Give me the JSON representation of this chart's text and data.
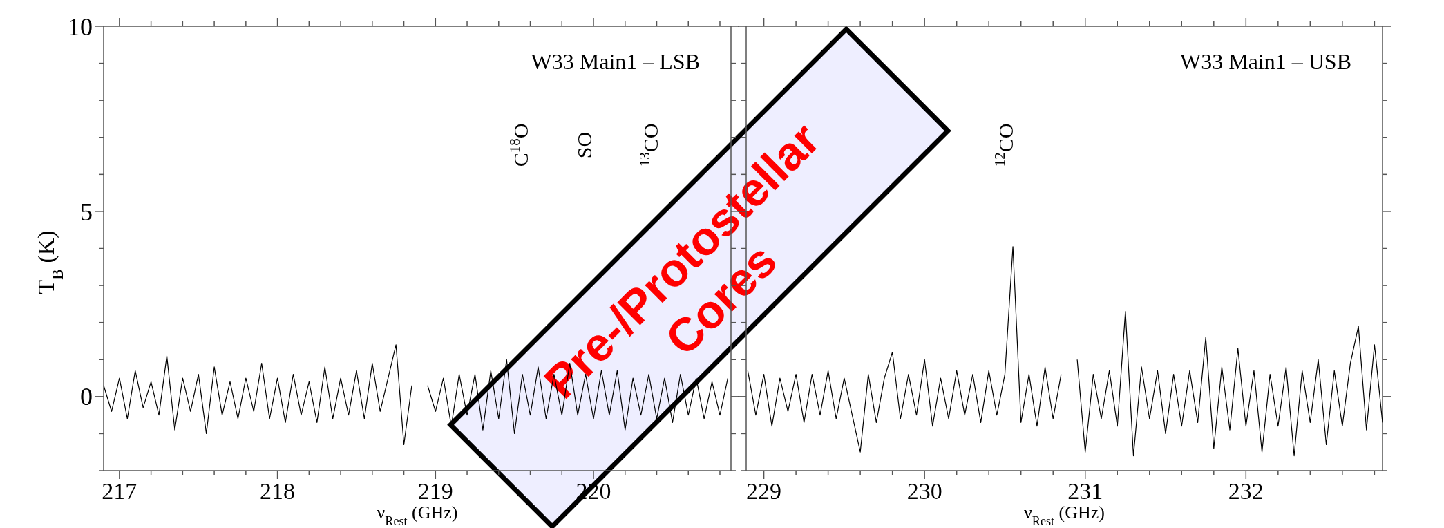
{
  "chart_data": [
    {
      "type": "line",
      "xlabel": "ν$_{Rest}$ (GHz)",
      "ylabel": "T$_{B}$ (K)",
      "xlim": [
        216.9,
        220.87
      ],
      "ylim": [
        -2,
        10
      ],
      "xticks": [
        217,
        {
          "value": 217.2,
          "label": null
        },
        {
          "value": 217.4,
          "label": null
        },
        {
          "value": 217.6,
          "label": null
        },
        {
          "value": 217.8,
          "label": null
        },
        218,
        {
          "value": 218.2,
          "label": null
        },
        {
          "value": 218.4,
          "label": null
        },
        {
          "value": 218.6,
          "label": null
        },
        {
          "value": 218.8,
          "label": null
        },
        219,
        {
          "value": 219.2,
          "label": null
        },
        {
          "value": 219.4,
          "label": null
        },
        {
          "value": 219.6,
          "label": null
        },
        {
          "value": 219.8,
          "label": null
        },
        220,
        {
          "value": 220.2,
          "label": null
        },
        {
          "value": 220.4,
          "label": null
        },
        {
          "value": 220.6,
          "label": null
        },
        {
          "value": 220.8,
          "label": null
        }
      ],
      "yticks": [
        {
          "value": -2,
          "label": null
        },
        {
          "value": -1,
          "label": null
        },
        0,
        {
          "value": 1,
          "label": null
        },
        {
          "value": 2,
          "label": null
        },
        {
          "value": 3,
          "label": null
        },
        {
          "value": 4,
          "label": null
        },
        5,
        {
          "value": 6,
          "label": null
        },
        {
          "value": 7,
          "label": null
        },
        {
          "value": 8,
          "label": null
        },
        {
          "value": 9,
          "label": null
        },
        10
      ],
      "x": [
        216.9,
        216.95,
        217,
        217.05,
        217.1,
        217.15,
        217.2,
        217.25,
        217.3,
        217.35,
        217.4,
        217.45,
        217.5,
        217.55,
        217.6,
        217.65,
        217.7,
        217.75,
        217.8,
        217.85,
        217.9,
        217.95,
        218,
        218.05,
        218.1,
        218.15,
        218.2,
        218.25,
        218.3,
        218.35,
        218.4,
        218.45,
        218.5,
        218.55,
        218.6,
        218.65,
        218.7,
        218.75,
        218.8,
        218.85,
        218.9,
        218.95,
        219,
        219.05,
        219.1,
        219.15,
        219.2,
        219.25,
        219.3,
        219.35,
        219.4,
        219.45,
        219.5,
        219.55,
        219.6,
        219.65,
        219.7,
        219.75,
        219.8,
        219.85,
        219.9,
        219.95,
        220,
        220.05,
        220.1,
        220.15,
        220.2,
        220.25,
        220.3,
        220.35,
        220.4,
        220.45,
        220.5,
        220.55,
        220.6,
        220.65,
        220.7,
        220.75,
        220.8,
        220.85
      ],
      "series": [
        {
          "color": "#000000",
          "values": [
            0.3,
            -0.4,
            0.5,
            -0.6,
            0.7,
            -0.3,
            0.4,
            -0.5,
            1.1,
            -0.9,
            0.5,
            -0.4,
            0.6,
            -1.0,
            0.8,
            -0.5,
            0.4,
            -0.6,
            0.5,
            -0.4,
            0.9,
            -0.6,
            0.5,
            -0.7,
            0.6,
            -0.5,
            0.4,
            -0.7,
            0.8,
            -0.6,
            0.5,
            -0.5,
            0.7,
            -0.6,
            0.9,
            -0.4,
            0.5,
            1.4,
            -1.3,
            0.3,
            null,
            0.3,
            -0.4,
            0.5,
            -0.8,
            0.6,
            -0.5,
            0.6,
            -0.9,
            0.7,
            -0.6,
            1.0,
            -1.0,
            0.6,
            -0.5,
            0.8,
            -0.6,
            0.6,
            -0.5,
            0.9,
            -0.5,
            0.6,
            -0.6,
            0.7,
            -0.5,
            0.7,
            -0.9,
            0.5,
            -0.5,
            0.6,
            -0.6,
            0.5,
            -0.7,
            0.6,
            -0.5,
            0.5,
            -0.6,
            0.4,
            -0.5,
            0.5
          ]
        }
      ],
      "annotations": [
        "W33 Main1 – LSB",
        "C$^{18}$O",
        "SO",
        "$^{13}$CO",
        "Pre-/Protostellar Cores"
      ]
    },
    {
      "type": "line",
      "xlabel": "ν$_{Rest}$ (GHz)",
      "tick_labels": "x",
      "xlim": [
        228.89,
        232.85
      ],
      "ylim": [
        -2,
        10
      ],
      "xticks": [
        229,
        {
          "value": 229.2,
          "label": null
        },
        {
          "value": 229.4,
          "label": null
        },
        {
          "value": 229.6,
          "label": null
        },
        {
          "value": 229.8,
          "label": null
        },
        230,
        {
          "value": 230.2,
          "label": null
        },
        {
          "value": 230.4,
          "label": null
        },
        {
          "value": 230.6,
          "label": null
        },
        {
          "value": 230.8,
          "label": null
        },
        231,
        {
          "value": 231.2,
          "label": null
        },
        {
          "value": 231.4,
          "label": null
        },
        {
          "value": 231.6,
          "label": null
        },
        {
          "value": 231.8,
          "label": null
        },
        232,
        {
          "value": 232.2,
          "label": null
        },
        {
          "value": 232.4,
          "label": null
        },
        {
          "value": 232.6,
          "label": null
        },
        {
          "value": 232.8,
          "label": null
        }
      ],
      "yticks": [
        {
          "value": -2,
          "label": null
        },
        {
          "value": -1,
          "label": null
        },
        {
          "value": 0,
          "label": null
        },
        {
          "value": 1,
          "label": null
        },
        {
          "value": 2,
          "label": null
        },
        {
          "value": 3,
          "label": null
        },
        {
          "value": 4,
          "label": null
        },
        {
          "value": 5,
          "label": null
        },
        {
          "value": 6,
          "label": null
        },
        {
          "value": 7,
          "label": null
        },
        {
          "value": 8,
          "label": null
        },
        {
          "value": 9,
          "label": null
        },
        {
          "value": 10,
          "label": null
        }
      ],
      "x": [
        228.9,
        228.95,
        229,
        229.05,
        229.1,
        229.15,
        229.2,
        229.25,
        229.3,
        229.35,
        229.4,
        229.45,
        229.5,
        229.55,
        229.6,
        229.65,
        229.7,
        229.75,
        229.8,
        229.85,
        229.9,
        229.95,
        230,
        230.05,
        230.1,
        230.15,
        230.2,
        230.25,
        230.3,
        230.35,
        230.4,
        230.45,
        230.5,
        230.55,
        230.6,
        230.65,
        230.7,
        230.75,
        230.8,
        230.85,
        230.9,
        230.95,
        231,
        231.05,
        231.1,
        231.15,
        231.2,
        231.25,
        231.3,
        231.35,
        231.4,
        231.45,
        231.5,
        231.55,
        231.6,
        231.65,
        231.7,
        231.75,
        231.8,
        231.85,
        231.9,
        231.95,
        232,
        232.05,
        232.1,
        232.15,
        232.2,
        232.25,
        232.3,
        232.35,
        232.4,
        232.45,
        232.5,
        232.55,
        232.6,
        232.65,
        232.7,
        232.75,
        232.8,
        232.85
      ],
      "series": [
        {
          "color": "#000000",
          "values": [
            0.7,
            -0.5,
            0.6,
            -0.8,
            0.5,
            -0.4,
            0.6,
            -0.7,
            0.6,
            -0.5,
            0.7,
            -0.6,
            0.5,
            -0.5,
            -1.5,
            0.6,
            -0.7,
            0.5,
            1.2,
            -0.6,
            0.6,
            -0.5,
            1.0,
            -0.8,
            0.5,
            -0.6,
            0.7,
            -0.5,
            0.6,
            -0.7,
            0.7,
            -0.5,
            0.6,
            4.05,
            -0.7,
            0.6,
            -0.8,
            0.8,
            -0.6,
            0.6,
            null,
            1.0,
            -1.5,
            0.6,
            -0.6,
            0.7,
            -0.8,
            2.3,
            -1.6,
            0.8,
            -0.6,
            0.7,
            -1.0,
            0.6,
            -0.8,
            0.7,
            -0.7,
            1.6,
            -1.4,
            0.8,
            -0.9,
            1.3,
            -0.8,
            0.7,
            -1.5,
            0.6,
            -0.8,
            0.8,
            -1.6,
            0.7,
            -0.7,
            1.0,
            -1.3,
            0.7,
            -0.8,
            0.9,
            1.9,
            -0.9,
            1.4,
            -0.7
          ]
        }
      ],
      "annotations": [
        "W33 Main1 – USB",
        "$^{12}$CO"
      ]
    }
  ]
}
